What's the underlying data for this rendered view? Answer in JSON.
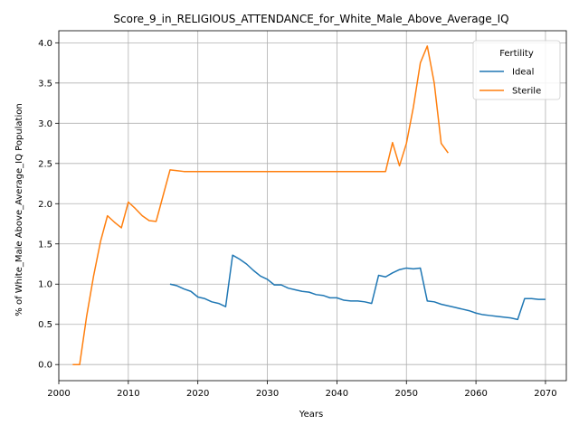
{
  "chart_data": {
    "type": "line",
    "title": "Score_9_in_RELIGIOUS_ATTENDANCE_for_White_Male_Above_Average_IQ",
    "xlabel": "Years",
    "ylabel": "% of White_Male Above_Average_IQ Population",
    "xlim": [
      2000,
      2073
    ],
    "ylim": [
      -0.2,
      4.15
    ],
    "xticks": [
      2000,
      2010,
      2020,
      2030,
      2040,
      2050,
      2060,
      2070
    ],
    "yticks": [
      0.0,
      0.5,
      1.0,
      1.5,
      2.0,
      2.5,
      3.0,
      3.5,
      4.0
    ],
    "grid": true,
    "legend": {
      "title": "Fertility",
      "placement": "top-right"
    },
    "series": [
      {
        "name": "Ideal",
        "color": "#1f77b4",
        "points": [
          [
            2016,
            1.0
          ],
          [
            2017,
            0.98
          ],
          [
            2018,
            0.94
          ],
          [
            2019,
            0.91
          ],
          [
            2020,
            0.84
          ],
          [
            2021,
            0.82
          ],
          [
            2022,
            0.78
          ],
          [
            2023,
            0.76
          ],
          [
            2024,
            0.72
          ],
          [
            2025,
            1.36
          ],
          [
            2026,
            1.31
          ],
          [
            2027,
            1.25
          ],
          [
            2028,
            1.17
          ],
          [
            2029,
            1.1
          ],
          [
            2030,
            1.06
          ],
          [
            2031,
            0.99
          ],
          [
            2032,
            0.99
          ],
          [
            2033,
            0.95
          ],
          [
            2034,
            0.93
          ],
          [
            2035,
            0.91
          ],
          [
            2036,
            0.9
          ],
          [
            2037,
            0.87
          ],
          [
            2038,
            0.86
          ],
          [
            2039,
            0.83
          ],
          [
            2040,
            0.83
          ],
          [
            2041,
            0.8
          ],
          [
            2042,
            0.79
          ],
          [
            2043,
            0.79
          ],
          [
            2044,
            0.78
          ],
          [
            2045,
            0.76
          ],
          [
            2046,
            1.11
          ],
          [
            2047,
            1.09
          ],
          [
            2048,
            1.14
          ],
          [
            2049,
            1.18
          ],
          [
            2050,
            1.2
          ],
          [
            2051,
            1.19
          ],
          [
            2052,
            1.2
          ],
          [
            2053,
            0.79
          ],
          [
            2054,
            0.78
          ],
          [
            2055,
            0.75
          ],
          [
            2056,
            0.73
          ],
          [
            2057,
            0.71
          ],
          [
            2058,
            0.69
          ],
          [
            2059,
            0.67
          ],
          [
            2060,
            0.64
          ],
          [
            2061,
            0.62
          ],
          [
            2062,
            0.61
          ],
          [
            2063,
            0.6
          ],
          [
            2064,
            0.59
          ],
          [
            2065,
            0.58
          ],
          [
            2066,
            0.56
          ],
          [
            2067,
            0.82
          ],
          [
            2068,
            0.82
          ],
          [
            2069,
            0.81
          ],
          [
            2070,
            0.81
          ]
        ]
      },
      {
        "name": "Sterile",
        "color": "#ff7f0e",
        "points": [
          [
            2002,
            0.0
          ],
          [
            2003,
            0.0
          ],
          [
            2004,
            0.6
          ],
          [
            2005,
            1.1
          ],
          [
            2006,
            1.53
          ],
          [
            2007,
            1.85
          ],
          [
            2008,
            1.77
          ],
          [
            2009,
            1.7
          ],
          [
            2010,
            2.02
          ],
          [
            2011,
            1.94
          ],
          [
            2012,
            1.85
          ],
          [
            2013,
            1.79
          ],
          [
            2014,
            1.78
          ],
          [
            2015,
            2.1
          ],
          [
            2016,
            2.42
          ],
          [
            2017,
            2.41
          ],
          [
            2018,
            2.4
          ],
          [
            2019,
            2.4
          ],
          [
            2020,
            2.4
          ],
          [
            2025,
            2.4
          ],
          [
            2030,
            2.4
          ],
          [
            2035,
            2.4
          ],
          [
            2040,
            2.4
          ],
          [
            2045,
            2.4
          ],
          [
            2047,
            2.4
          ],
          [
            2048,
            2.76
          ],
          [
            2049,
            2.47
          ],
          [
            2050,
            2.75
          ],
          [
            2051,
            3.2
          ],
          [
            2052,
            3.75
          ],
          [
            2053,
            3.96
          ],
          [
            2054,
            3.5
          ],
          [
            2055,
            2.75
          ],
          [
            2056,
            2.63
          ]
        ]
      }
    ]
  }
}
